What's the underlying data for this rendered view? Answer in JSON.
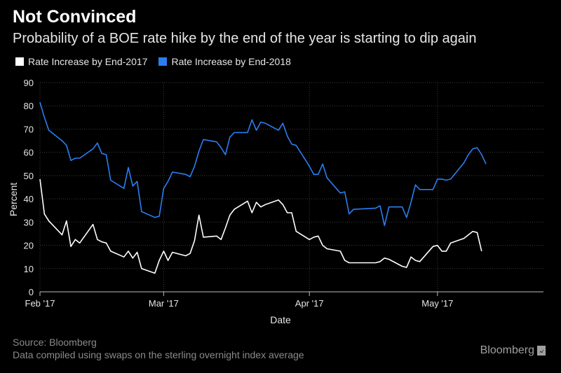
{
  "title": "Not Convinced",
  "subtitle": "Probability of a BOE rate hike by the end of the year is starting to dip again",
  "legend": [
    {
      "label": "Rate Increase by End-2017",
      "color": "#ffffff"
    },
    {
      "label": "Rate Increase by End-2018",
      "color": "#2b7ef0"
    }
  ],
  "footer": {
    "source": "Source: Bloomberg",
    "note": "Data compiled using swaps on the sterling overnight index average"
  },
  "brand": "Bloomberg",
  "chart_data": {
    "type": "line",
    "xlabel": "Date",
    "ylabel": "Percent",
    "ylim": [
      0,
      90
    ],
    "yticks": [
      0,
      10,
      20,
      30,
      40,
      50,
      60,
      70,
      80,
      90
    ],
    "xticks": [
      {
        "label": "Feb '17",
        "date": "2017-02-01"
      },
      {
        "label": "Mar '17",
        "date": "2017-03-01"
      },
      {
        "label": "Apr '17",
        "date": "2017-04-03"
      },
      {
        "label": "May '17",
        "date": "2017-05-02"
      }
    ],
    "xlim": [
      "2017-02-01",
      "2017-05-26"
    ],
    "grid": true,
    "legend_position": "top-left",
    "series": [
      {
        "name": "Rate Increase by End-2017",
        "color": "#ffffff",
        "points": [
          [
            "2017-02-01",
            48.5
          ],
          [
            "2017-02-02",
            33.5
          ],
          [
            "2017-02-03",
            30.5
          ],
          [
            "2017-02-06",
            24.5
          ],
          [
            "2017-02-07",
            30.5
          ],
          [
            "2017-02-08",
            19.5
          ],
          [
            "2017-02-09",
            22.5
          ],
          [
            "2017-02-10",
            21.0
          ],
          [
            "2017-02-13",
            29.0
          ],
          [
            "2017-02-14",
            22.5
          ],
          [
            "2017-02-15",
            21.5
          ],
          [
            "2017-02-16",
            21.0
          ],
          [
            "2017-02-17",
            17.5
          ],
          [
            "2017-02-20",
            15.0
          ],
          [
            "2017-02-21",
            17.5
          ],
          [
            "2017-02-22",
            14.5
          ],
          [
            "2017-02-23",
            17.0
          ],
          [
            "2017-02-24",
            10.0
          ],
          [
            "2017-02-27",
            8.0
          ],
          [
            "2017-02-28",
            13.5
          ],
          [
            "2017-03-01",
            17.5
          ],
          [
            "2017-03-02",
            13.5
          ],
          [
            "2017-03-03",
            17.0
          ],
          [
            "2017-03-06",
            15.5
          ],
          [
            "2017-03-07",
            16.5
          ],
          [
            "2017-03-08",
            22.0
          ],
          [
            "2017-03-09",
            33.0
          ],
          [
            "2017-03-10",
            23.5
          ],
          [
            "2017-03-13",
            24.0
          ],
          [
            "2017-03-14",
            22.5
          ],
          [
            "2017-03-15",
            27.5
          ],
          [
            "2017-03-16",
            33.0
          ],
          [
            "2017-03-17",
            35.5
          ],
          [
            "2017-03-20",
            39.0
          ],
          [
            "2017-03-21",
            34.0
          ],
          [
            "2017-03-22",
            38.5
          ],
          [
            "2017-03-23",
            36.5
          ],
          [
            "2017-03-24",
            37.5
          ],
          [
            "2017-03-27",
            39.5
          ],
          [
            "2017-03-28",
            37.5
          ],
          [
            "2017-03-29",
            34.0
          ],
          [
            "2017-03-30",
            34.0
          ],
          [
            "2017-03-31",
            26.0
          ],
          [
            "2017-04-03",
            22.5
          ],
          [
            "2017-04-04",
            23.5
          ],
          [
            "2017-04-05",
            24.0
          ],
          [
            "2017-04-06",
            20.0
          ],
          [
            "2017-04-07",
            18.5
          ],
          [
            "2017-04-10",
            17.5
          ],
          [
            "2017-04-11",
            13.5
          ],
          [
            "2017-04-12",
            12.5
          ],
          [
            "2017-04-13",
            12.5
          ],
          [
            "2017-04-18",
            12.5
          ],
          [
            "2017-04-19",
            13.0
          ],
          [
            "2017-04-20",
            14.5
          ],
          [
            "2017-04-21",
            14.0
          ],
          [
            "2017-04-24",
            11.0
          ],
          [
            "2017-04-25",
            10.5
          ],
          [
            "2017-04-26",
            15.0
          ],
          [
            "2017-04-27",
            13.5
          ],
          [
            "2017-04-28",
            13.0
          ],
          [
            "2017-05-01",
            19.5
          ],
          [
            "2017-05-02",
            20.0
          ],
          [
            "2017-05-03",
            17.5
          ],
          [
            "2017-05-04",
            17.5
          ],
          [
            "2017-05-05",
            21.0
          ],
          [
            "2017-05-08",
            23.0
          ],
          [
            "2017-05-09",
            24.5
          ],
          [
            "2017-05-10",
            26.0
          ],
          [
            "2017-05-11",
            25.5
          ],
          [
            "2017-05-12",
            17.5
          ]
        ]
      },
      {
        "name": "Rate Increase by End-2018",
        "color": "#2b7ef0",
        "points": [
          [
            "2017-02-01",
            81.5
          ],
          [
            "2017-02-02",
            75.0
          ],
          [
            "2017-02-03",
            69.5
          ],
          [
            "2017-02-06",
            65.0
          ],
          [
            "2017-02-07",
            63.0
          ],
          [
            "2017-02-08",
            56.5
          ],
          [
            "2017-02-09",
            57.5
          ],
          [
            "2017-02-10",
            57.5
          ],
          [
            "2017-02-13",
            61.5
          ],
          [
            "2017-02-14",
            64.0
          ],
          [
            "2017-02-15",
            59.5
          ],
          [
            "2017-02-16",
            59.0
          ],
          [
            "2017-02-17",
            48.0
          ],
          [
            "2017-02-20",
            44.5
          ],
          [
            "2017-02-21",
            53.5
          ],
          [
            "2017-02-22",
            45.5
          ],
          [
            "2017-02-23",
            47.5
          ],
          [
            "2017-02-24",
            34.5
          ],
          [
            "2017-02-27",
            32.0
          ],
          [
            "2017-02-28",
            32.5
          ],
          [
            "2017-03-01",
            44.5
          ],
          [
            "2017-03-02",
            47.5
          ],
          [
            "2017-03-03",
            51.5
          ],
          [
            "2017-03-06",
            50.5
          ],
          [
            "2017-03-07",
            49.5
          ],
          [
            "2017-03-08",
            54.0
          ],
          [
            "2017-03-09",
            60.5
          ],
          [
            "2017-03-10",
            65.5
          ],
          [
            "2017-03-13",
            64.5
          ],
          [
            "2017-03-14",
            62.0
          ],
          [
            "2017-03-15",
            59.0
          ],
          [
            "2017-03-16",
            66.5
          ],
          [
            "2017-03-17",
            68.5
          ],
          [
            "2017-03-20",
            68.5
          ],
          [
            "2017-03-21",
            74.0
          ],
          [
            "2017-03-22",
            69.5
          ],
          [
            "2017-03-23",
            73.0
          ],
          [
            "2017-03-24",
            72.5
          ],
          [
            "2017-03-27",
            69.5
          ],
          [
            "2017-03-28",
            72.5
          ],
          [
            "2017-03-29",
            67.0
          ],
          [
            "2017-03-30",
            63.5
          ],
          [
            "2017-03-31",
            63.0
          ],
          [
            "2017-04-03",
            54.0
          ],
          [
            "2017-04-04",
            50.5
          ],
          [
            "2017-04-05",
            50.5
          ],
          [
            "2017-04-06",
            55.0
          ],
          [
            "2017-04-07",
            49.0
          ],
          [
            "2017-04-10",
            42.5
          ],
          [
            "2017-04-11",
            43.0
          ],
          [
            "2017-04-12",
            33.5
          ],
          [
            "2017-04-13",
            35.5
          ],
          [
            "2017-04-18",
            36.0
          ],
          [
            "2017-04-19",
            37.0
          ],
          [
            "2017-04-20",
            28.5
          ],
          [
            "2017-04-21",
            36.5
          ],
          [
            "2017-04-24",
            36.5
          ],
          [
            "2017-04-25",
            32.0
          ],
          [
            "2017-04-26",
            38.5
          ],
          [
            "2017-04-27",
            46.0
          ],
          [
            "2017-04-28",
            44.0
          ],
          [
            "2017-05-01",
            44.0
          ],
          [
            "2017-05-02",
            48.5
          ],
          [
            "2017-05-03",
            48.5
          ],
          [
            "2017-05-04",
            48.0
          ],
          [
            "2017-05-05",
            48.5
          ],
          [
            "2017-05-08",
            55.5
          ],
          [
            "2017-05-09",
            59.0
          ],
          [
            "2017-05-10",
            61.5
          ],
          [
            "2017-05-11",
            62.0
          ],
          [
            "2017-05-12",
            59.0
          ],
          [
            "2017-05-13",
            55.0
          ]
        ]
      }
    ]
  }
}
